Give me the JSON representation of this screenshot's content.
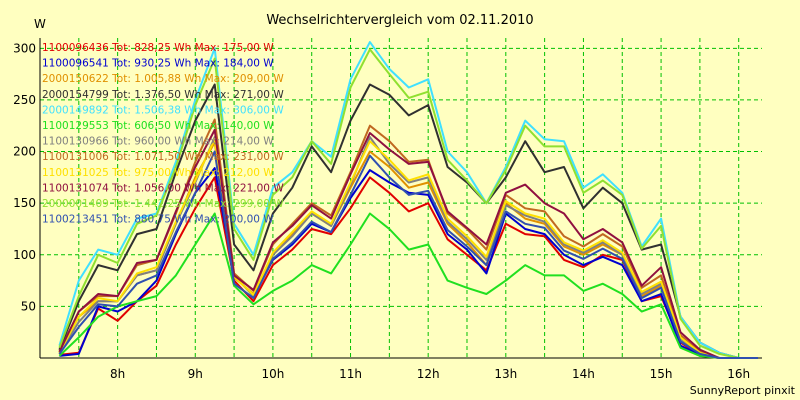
{
  "chart_data": {
    "type": "line",
    "title": "Wechselrichtervergleich vom 02.11.2010",
    "ylabel": "W",
    "xlabel": "",
    "footer": "SunnyReport pinxit",
    "ylim": [
      0,
      310
    ],
    "yticks": [
      "50",
      "100",
      "150",
      "200",
      "250",
      "300"
    ],
    "xtick_labels": [
      "8h",
      "9h",
      "10h",
      "11h",
      "12h",
      "13h",
      "14h",
      "15h",
      "16h"
    ],
    "grid": true,
    "legend_placement": "top-left",
    "x": [
      7.25,
      7.5,
      7.75,
      8.0,
      8.25,
      8.5,
      8.75,
      9.0,
      9.25,
      9.5,
      9.75,
      10.0,
      10.25,
      10.5,
      10.75,
      11.0,
      11.25,
      11.5,
      11.75,
      12.0,
      12.25,
      12.5,
      12.75,
      13.0,
      13.25,
      13.5,
      13.75,
      14.0,
      14.25,
      14.5,
      14.75,
      15.0,
      15.25,
      15.5,
      15.75,
      16.0,
      16.25
    ],
    "series": [
      {
        "label": "1100096436 Tot: 828,25 Wh Max: 175,00 W",
        "color": "#e00000",
        "values": [
          3,
          5,
          48,
          36,
          55,
          70,
          110,
          145,
          175,
          75,
          55,
          90,
          105,
          125,
          120,
          145,
          175,
          160,
          142,
          150,
          115,
          100,
          85,
          130,
          120,
          118,
          95,
          88,
          100,
          95,
          55,
          60,
          15,
          3,
          0,
          0,
          0
        ]
      },
      {
        "label": "1100096541 Tot: 930,25 Wh Max: 184,00 W",
        "color": "#0000d0",
        "values": [
          2,
          4,
          50,
          45,
          55,
          75,
          120,
          160,
          184,
          80,
          60,
          95,
          110,
          130,
          122,
          155,
          182,
          170,
          160,
          158,
          120,
          105,
          82,
          140,
          125,
          120,
          100,
          90,
          98,
          90,
          55,
          62,
          12,
          3,
          0,
          0,
          0
        ]
      },
      {
        "label": "2000150622 Tot: 1.005,88 Wh Max: 209,00 W",
        "color": "#e09000",
        "values": [
          5,
          40,
          55,
          55,
          80,
          85,
          130,
          175,
          209,
          78,
          62,
          100,
          120,
          140,
          128,
          165,
          200,
          185,
          165,
          170,
          130,
          112,
          90,
          150,
          135,
          130,
          108,
          100,
          110,
          100,
          60,
          70,
          20,
          5,
          0,
          0,
          0
        ]
      },
      {
        "label": "2000154799 Tot: 1.376,50 Wh Max: 271,00 W",
        "color": "#303030",
        "values": [
          8,
          55,
          90,
          85,
          120,
          125,
          180,
          230,
          265,
          110,
          85,
          140,
          165,
          205,
          180,
          230,
          265,
          255,
          235,
          245,
          185,
          170,
          150,
          175,
          210,
          180,
          185,
          145,
          165,
          150,
          105,
          110,
          40,
          15,
          5,
          0,
          0
        ]
      },
      {
        "label": "2000149892 Tot: 1.506,38 Wh Max: 306,00 W",
        "color": "#40e0ff",
        "values": [
          12,
          75,
          105,
          100,
          135,
          140,
          190,
          250,
          300,
          130,
          100,
          165,
          180,
          210,
          195,
          270,
          306,
          280,
          262,
          270,
          200,
          180,
          150,
          185,
          230,
          212,
          210,
          165,
          178,
          160,
          108,
          135,
          40,
          15,
          5,
          0,
          0
        ]
      },
      {
        "label": "1100129553 Tot: 606,50 Wh Max: 140,00 W",
        "color": "#20e020",
        "values": [
          2,
          20,
          40,
          50,
          55,
          60,
          80,
          110,
          140,
          70,
          52,
          65,
          75,
          90,
          82,
          110,
          140,
          125,
          105,
          110,
          75,
          68,
          62,
          75,
          90,
          80,
          80,
          65,
          72,
          62,
          45,
          52,
          10,
          2,
          0,
          0,
          0
        ]
      },
      {
        "label": "1100130966 Tot: 960,00 Wh Max: 214,00 W",
        "color": "#808080",
        "values": [
          4,
          35,
          55,
          55,
          80,
          85,
          130,
          170,
          214,
          80,
          60,
          100,
          118,
          140,
          128,
          168,
          214,
          188,
          170,
          175,
          132,
          115,
          95,
          148,
          138,
          132,
          110,
          102,
          112,
          100,
          62,
          72,
          18,
          4,
          0,
          0,
          0
        ]
      },
      {
        "label": "1100131006 Tot: 1.071,50 Wh Max: 231,00 W",
        "color": "#c06820",
        "values": [
          6,
          45,
          60,
          60,
          90,
          95,
          140,
          190,
          231,
          82,
          65,
          110,
          130,
          150,
          138,
          180,
          225,
          210,
          190,
          192,
          140,
          125,
          105,
          158,
          145,
          142,
          118,
          108,
          120,
          108,
          68,
          80,
          22,
          6,
          0,
          0,
          0
        ]
      },
      {
        "label": "1100131025 Tot: 975,00 Wh Max: 212,00 W",
        "color": "#ffe000",
        "values": [
          5,
          40,
          58,
          55,
          82,
          88,
          132,
          172,
          212,
          79,
          61,
          102,
          122,
          142,
          130,
          170,
          210,
          192,
          172,
          178,
          135,
          118,
          98,
          152,
          140,
          135,
          112,
          104,
          114,
          102,
          64,
          74,
          20,
          5,
          0,
          0,
          0
        ]
      },
      {
        "label": "1100131074 Tot: 1.056,00 Wh Max: 221,00 W",
        "color": "#901040",
        "values": [
          6,
          45,
          62,
          60,
          92,
          95,
          142,
          185,
          221,
          80,
          66,
          112,
          128,
          148,
          135,
          178,
          218,
          202,
          188,
          190,
          142,
          126,
          110,
          160,
          168,
          150,
          140,
          115,
          125,
          112,
          70,
          88,
          25,
          8,
          0,
          0,
          0
        ]
      },
      {
        "label": "2000001409 Tot: 1.442,25 Wh Max: 299,00 W",
        "color": "#90e030",
        "values": [
          10,
          60,
          100,
          92,
          130,
          138,
          185,
          245,
          290,
          125,
          95,
          158,
          175,
          210,
          188,
          262,
          299,
          275,
          252,
          258,
          192,
          172,
          150,
          182,
          225,
          205,
          205,
          160,
          172,
          158,
          106,
          128,
          38,
          12,
          4,
          0,
          0
        ]
      },
      {
        "label": "1100213451 Tot: 880,75 Wh Max: 200,00 W",
        "color": "#3050b0",
        "values": [
          4,
          30,
          52,
          50,
          72,
          80,
          122,
          160,
          200,
          72,
          58,
          96,
          112,
          132,
          122,
          158,
          196,
          175,
          158,
          162,
          124,
          108,
          90,
          142,
          130,
          126,
          104,
          96,
          106,
          96,
          58,
          68,
          16,
          4,
          0,
          0,
          0
        ]
      }
    ]
  }
}
